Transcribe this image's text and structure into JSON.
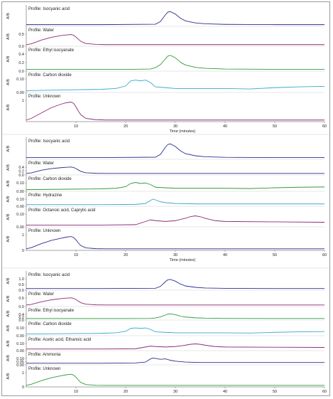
{
  "chart_data": [
    {
      "type": "line",
      "xlabel": "Time (minutes)",
      "xlim": [
        0,
        60
      ],
      "x_ticks": [
        "10",
        "20",
        "30",
        "40",
        "50",
        "60"
      ],
      "series": [
        {
          "name": "Profile: Isocyanic acid",
          "ylabel": "A/B",
          "ytick_labels": [],
          "color": "#2b2f8f",
          "ylim": [
            0,
            1
          ],
          "x": [
            0,
            15,
            26,
            27,
            28,
            28.5,
            29,
            30,
            31,
            32,
            34,
            36,
            40,
            45,
            50,
            60
          ],
          "y": [
            0.02,
            0.02,
            0.05,
            0.25,
            0.75,
            0.95,
            0.98,
            0.8,
            0.5,
            0.3,
            0.15,
            0.08,
            0.04,
            0.03,
            0.02,
            0.02
          ]
        },
        {
          "name": "Profile: Water",
          "ylabel": "A/B",
          "ytick_labels": [
            "0.5",
            "0.0"
          ],
          "color": "#8b2a78",
          "ylim": [
            0,
            0.65
          ],
          "x": [
            0,
            1,
            3,
            5,
            7,
            8,
            9,
            9.5,
            10,
            10.5,
            11,
            12,
            14,
            16,
            60
          ],
          "y": [
            0.01,
            0.05,
            0.25,
            0.4,
            0.5,
            0.53,
            0.55,
            0.52,
            0.42,
            0.3,
            0.18,
            0.07,
            0.02,
            0.01,
            0.01
          ]
        },
        {
          "name": "Profile: Ethyl isocyanate",
          "ylabel": "A/B",
          "ytick_labels": [
            "0.4",
            "0.2",
            "0.0"
          ],
          "color": "#2f9a3a",
          "ylim": [
            0,
            0.5
          ],
          "x": [
            0,
            20,
            25,
            26,
            27,
            28,
            28.5,
            29,
            30,
            31,
            32,
            34,
            36,
            40,
            50,
            60
          ],
          "y": [
            0.01,
            0.01,
            0.02,
            0.06,
            0.15,
            0.32,
            0.4,
            0.42,
            0.35,
            0.22,
            0.14,
            0.07,
            0.04,
            0.02,
            0.01,
            0.01
          ]
        },
        {
          "name": "Profile: Carbon dioxide",
          "ylabel": "A/B",
          "ytick_labels": [
            "0.10",
            "0.00"
          ],
          "color": "#3aa8c9",
          "ylim": [
            0,
            0.16
          ],
          "x": [
            0,
            5,
            10,
            15,
            18,
            20,
            21,
            22,
            23,
            24,
            25,
            26,
            28,
            30,
            35,
            40,
            45,
            50,
            55,
            60
          ],
          "y": [
            0.005,
            0.01,
            0.015,
            0.02,
            0.03,
            0.06,
            0.12,
            0.13,
            0.12,
            0.13,
            0.1,
            0.05,
            0.04,
            0.03,
            0.03,
            0.03,
            0.025,
            0.04,
            0.05,
            0.055
          ]
        },
        {
          "name": "Profile: Unknown",
          "ylabel": "A/B",
          "ytick_labels": [
            "1"
          ],
          "color": "#8b2a78",
          "ylim": [
            0,
            1.2
          ],
          "x": [
            0,
            1,
            3,
            5,
            7,
            8,
            9,
            9.5,
            10,
            10.5,
            11,
            12,
            14,
            16,
            60
          ],
          "y": [
            0.01,
            0.1,
            0.4,
            0.7,
            0.9,
            0.98,
            1.02,
            0.95,
            0.75,
            0.5,
            0.3,
            0.1,
            0.03,
            0.01,
            0.01
          ]
        }
      ]
    },
    {
      "type": "line",
      "xlabel": "Time (minutes)",
      "xlim": [
        0,
        60
      ],
      "x_ticks": [
        "10",
        "20",
        "30",
        "40",
        "50",
        "60"
      ],
      "series": [
        {
          "name": "Profile: Isocyanic acid",
          "ylabel": "A/B",
          "ytick_labels": [],
          "color": "#2b2f8f",
          "ylim": [
            0,
            1
          ],
          "x": [
            0,
            15,
            26,
            27,
            28,
            28.5,
            29,
            30,
            31,
            32,
            34,
            36,
            40,
            45,
            50,
            60
          ],
          "y": [
            0.02,
            0.02,
            0.05,
            0.25,
            0.75,
            0.95,
            0.98,
            0.8,
            0.5,
            0.3,
            0.15,
            0.08,
            0.04,
            0.03,
            0.02,
            0.02
          ]
        },
        {
          "name": "Profile: Water",
          "ylabel": "A/B",
          "ytick_labels": [
            "0.4",
            "0.2",
            "0.0"
          ],
          "color": "#2b2f8f",
          "ylim": [
            0,
            0.6
          ],
          "x": [
            0,
            1,
            3,
            5,
            7,
            8,
            9,
            9.5,
            10,
            10.5,
            11,
            12,
            14,
            16,
            60
          ],
          "y": [
            0.01,
            0.05,
            0.25,
            0.38,
            0.45,
            0.48,
            0.5,
            0.47,
            0.38,
            0.27,
            0.16,
            0.06,
            0.02,
            0.01,
            0.01
          ]
        },
        {
          "name": "Profile: Carbon dioxide",
          "ylabel": "A/B",
          "ytick_labels": [
            "0.10",
            "0.00"
          ],
          "color": "#2f9a3a",
          "ylim": [
            0,
            0.16
          ],
          "x": [
            0,
            5,
            10,
            15,
            18,
            20,
            21,
            22,
            23,
            24,
            25,
            26,
            28,
            30,
            35,
            40,
            45,
            50,
            55,
            60
          ],
          "y": [
            0.005,
            0.01,
            0.015,
            0.02,
            0.03,
            0.06,
            0.12,
            0.14,
            0.12,
            0.13,
            0.1,
            0.05,
            0.04,
            0.03,
            0.03,
            0.03,
            0.025,
            0.04,
            0.05,
            0.055
          ]
        },
        {
          "name": "Profile: Hydrazine",
          "ylabel": "A/B",
          "ytick_labels": [
            "0.10",
            "0.00"
          ],
          "color": "#3aa8c9",
          "ylim": [
            0,
            0.16
          ],
          "x": [
            0,
            15,
            22,
            24,
            25,
            25.5,
            26,
            27,
            28,
            30,
            35,
            40,
            50,
            60
          ],
          "y": [
            0.005,
            0.005,
            0.01,
            0.03,
            0.1,
            0.13,
            0.11,
            0.07,
            0.05,
            0.03,
            0.02,
            0.02,
            0.02,
            0.02
          ]
        },
        {
          "name": "Profile: Octanoic acid, Caprylic acid",
          "ylabel": "A/B",
          "ytick_labels": [
            "0.10",
            "0.00"
          ],
          "color": "#8b2a78",
          "ylim": [
            0,
            0.16
          ],
          "x": [
            0,
            15,
            22,
            24,
            25,
            26,
            28,
            30,
            32,
            33,
            34,
            35,
            36,
            38,
            40,
            50,
            60
          ],
          "y": [
            0.005,
            0.005,
            0.01,
            0.05,
            0.07,
            0.06,
            0.05,
            0.06,
            0.09,
            0.11,
            0.12,
            0.11,
            0.09,
            0.06,
            0.05,
            0.045,
            0.04
          ]
        },
        {
          "name": "Profile: Unknown",
          "ylabel": "A/B",
          "ytick_labels": [
            "1",
            "0"
          ],
          "color": "#2b2f8f",
          "ylim": [
            0,
            1.2
          ],
          "x": [
            0,
            1,
            3,
            5,
            7,
            8,
            9,
            9.5,
            10,
            10.5,
            11,
            12,
            14,
            16,
            60
          ],
          "y": [
            0.01,
            0.1,
            0.4,
            0.65,
            0.82,
            0.9,
            0.95,
            0.88,
            0.7,
            0.45,
            0.25,
            0.08,
            0.02,
            0.01,
            0.01
          ]
        }
      ]
    },
    {
      "type": "line",
      "xlabel": "",
      "xlim": [
        0,
        60
      ],
      "x_ticks": [
        "10",
        "20",
        "30",
        "40",
        "50",
        "60"
      ],
      "series": [
        {
          "name": "Profile: Isocyanic acid",
          "ylabel": "A/B",
          "ytick_labels": [
            "1.0",
            "0.5",
            "0.0"
          ],
          "color": "#2b2f8f",
          "ylim": [
            0,
            1.2
          ],
          "x": [
            0,
            15,
            26,
            27,
            28,
            28.5,
            29,
            30,
            31,
            32,
            34,
            36,
            40,
            45,
            50,
            60
          ],
          "y": [
            0.02,
            0.02,
            0.05,
            0.25,
            0.75,
            0.95,
            0.98,
            0.8,
            0.5,
            0.3,
            0.15,
            0.08,
            0.04,
            0.03,
            0.02,
            0.02
          ]
        },
        {
          "name": "Profile: Water",
          "ylabel": "A/B",
          "ytick_labels": [
            "0.5",
            "0.0"
          ],
          "color": "#8b2a78",
          "ylim": [
            0,
            0.65
          ],
          "x": [
            0,
            1,
            3,
            5,
            7,
            8,
            9,
            9.5,
            10,
            10.5,
            11,
            12,
            14,
            16,
            60
          ],
          "y": [
            0.01,
            0.05,
            0.25,
            0.4,
            0.5,
            0.53,
            0.55,
            0.52,
            0.42,
            0.3,
            0.18,
            0.07,
            0.02,
            0.01,
            0.01
          ]
        },
        {
          "name": "Profile: Ethyl isocyanate",
          "ylabel": "A/B",
          "ytick_labels": [
            "0.4",
            "0.2",
            "0.0"
          ],
          "color": "#2f9a3a",
          "ylim": [
            0,
            0.5
          ],
          "x": [
            0,
            20,
            25,
            26,
            27,
            28,
            28.5,
            29,
            30,
            31,
            32,
            34,
            36,
            40,
            50,
            60
          ],
          "y": [
            0.01,
            0.01,
            0.02,
            0.06,
            0.15,
            0.32,
            0.4,
            0.42,
            0.35,
            0.22,
            0.14,
            0.07,
            0.04,
            0.02,
            0.01,
            0.01
          ]
        },
        {
          "name": "Profile: Carbon dioxide",
          "ylabel": "A/B",
          "ytick_labels": [
            "0.10",
            "0.00"
          ],
          "color": "#3aa8c9",
          "ylim": [
            0,
            0.16
          ],
          "x": [
            0,
            5,
            10,
            15,
            18,
            20,
            21,
            22,
            23,
            24,
            25,
            26,
            28,
            30,
            35,
            40,
            45,
            50,
            55,
            60
          ],
          "y": [
            0.005,
            0.01,
            0.015,
            0.02,
            0.03,
            0.06,
            0.12,
            0.13,
            0.12,
            0.13,
            0.1,
            0.05,
            0.04,
            0.03,
            0.03,
            0.03,
            0.025,
            0.04,
            0.05,
            0.055
          ]
        },
        {
          "name": "Profile: Acetic acid, Ethanoic acid",
          "ylabel": "A/B",
          "ytick_labels": [
            "0.10",
            "0.00"
          ],
          "color": "#8b2a78",
          "ylim": [
            0,
            0.16
          ],
          "x": [
            0,
            15,
            22,
            24,
            25,
            26,
            28,
            30,
            32,
            33,
            34,
            35,
            36,
            38,
            40,
            50,
            60
          ],
          "y": [
            0.005,
            0.005,
            0.01,
            0.05,
            0.07,
            0.06,
            0.05,
            0.06,
            0.09,
            0.11,
            0.12,
            0.11,
            0.09,
            0.06,
            0.05,
            0.045,
            0.04
          ]
        },
        {
          "name": "Profile: Ammonia",
          "ylabel": "A/B",
          "ytick_labels": [
            "0.10",
            "0.05",
            "0.00"
          ],
          "color": "#2b2f8f",
          "ylim": [
            0,
            0.14
          ],
          "x": [
            0,
            15,
            22,
            24,
            25,
            25.5,
            26,
            27,
            28,
            29,
            30,
            32,
            35,
            40,
            50,
            60
          ],
          "y": [
            0.005,
            0.005,
            0.01,
            0.03,
            0.1,
            0.12,
            0.11,
            0.09,
            0.1,
            0.07,
            0.05,
            0.03,
            0.02,
            0.02,
            0.02,
            0.02
          ]
        },
        {
          "name": "Profile: Unknown",
          "ylabel": "A/B",
          "ytick_labels": [
            "1",
            "0"
          ],
          "color": "#2f9a3a",
          "ylim": [
            0,
            1.2
          ],
          "x": [
            0,
            1,
            3,
            5,
            7,
            8,
            9,
            9.5,
            10,
            10.5,
            11,
            12,
            14,
            16,
            60
          ],
          "y": [
            0.01,
            0.1,
            0.4,
            0.65,
            0.82,
            0.9,
            0.95,
            0.88,
            0.7,
            0.45,
            0.25,
            0.08,
            0.02,
            0.01,
            0.01
          ]
        }
      ]
    }
  ]
}
